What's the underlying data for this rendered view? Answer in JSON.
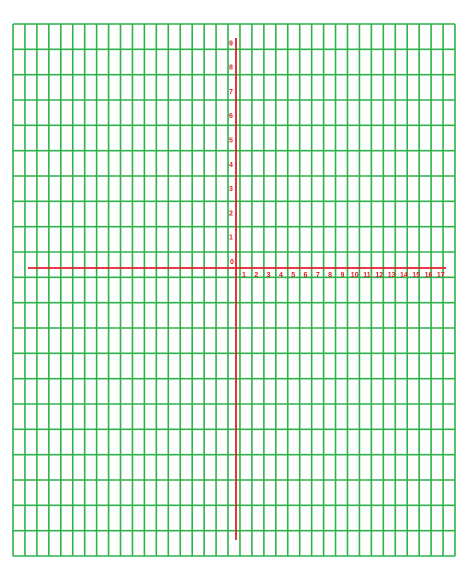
{
  "colors": {
    "grid": "#2db34a",
    "axis": "#e0202a",
    "label": "#e0202a",
    "background": "#ffffff"
  },
  "grid": {
    "columns": 37,
    "rows": 21
  },
  "axes": {
    "origin_label": "0",
    "x_labels": [
      "1",
      "2",
      "3",
      "4",
      "5",
      "6",
      "7",
      "8",
      "9",
      "10",
      "11",
      "12",
      "13",
      "14",
      "15",
      "16",
      "17"
    ],
    "y_labels": [
      "1",
      "2",
      "3",
      "4",
      "5",
      "6",
      "7",
      "8",
      "9"
    ]
  }
}
